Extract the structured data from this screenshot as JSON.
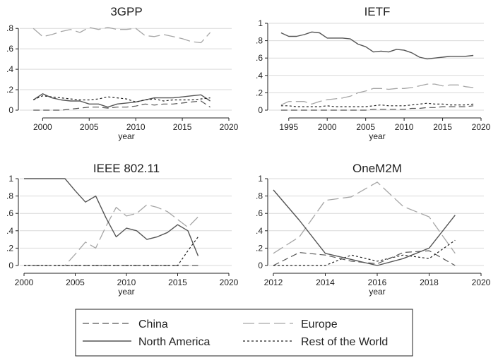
{
  "chart_data": [
    {
      "type": "line",
      "title": "3GPP",
      "xlabel": "year",
      "ylabel": "",
      "xlim": [
        1998,
        2020
      ],
      "ylim": [
        0,
        0.85
      ],
      "xticks": [
        2000,
        2005,
        2010,
        2015,
        2020
      ],
      "yticks": [
        0,
        0.2,
        0.4,
        0.6,
        0.8
      ],
      "ytick_labels": [
        "0",
        ".2",
        ".4",
        ".6",
        ".8"
      ],
      "grid": true,
      "series": [
        {
          "name": "China",
          "x": [
            1999,
            2000,
            2001,
            2002,
            2003,
            2004,
            2005,
            2006,
            2007,
            2008,
            2009,
            2010,
            2011,
            2012,
            2013,
            2014,
            2015,
            2016,
            2017,
            2018
          ],
          "values": [
            0.0,
            0.0,
            0.0,
            0.0,
            0.01,
            0.02,
            0.03,
            0.03,
            0.02,
            0.03,
            0.03,
            0.04,
            0.06,
            0.05,
            0.06,
            0.06,
            0.07,
            0.08,
            0.09,
            0.03
          ]
        },
        {
          "name": "Europe",
          "x": [
            1999,
            2000,
            2001,
            2002,
            2003,
            2004,
            2005,
            2006,
            2007,
            2008,
            2009,
            2010,
            2011,
            2012,
            2013,
            2014,
            2015,
            2016,
            2017,
            2018
          ],
          "values": [
            0.8,
            0.72,
            0.74,
            0.77,
            0.79,
            0.76,
            0.81,
            0.79,
            0.81,
            0.79,
            0.79,
            0.8,
            0.73,
            0.72,
            0.74,
            0.72,
            0.7,
            0.67,
            0.66,
            0.76
          ]
        },
        {
          "name": "North America",
          "x": [
            1999,
            2000,
            2001,
            2002,
            2003,
            2004,
            2005,
            2006,
            2007,
            2008,
            2009,
            2010,
            2011,
            2012,
            2013,
            2014,
            2015,
            2016,
            2017,
            2018
          ],
          "values": [
            0.1,
            0.16,
            0.12,
            0.1,
            0.09,
            0.09,
            0.06,
            0.06,
            0.03,
            0.06,
            0.07,
            0.08,
            0.1,
            0.12,
            0.12,
            0.12,
            0.13,
            0.14,
            0.15,
            0.09
          ]
        },
        {
          "name": "Rest of the World",
          "x": [
            1999,
            2000,
            2001,
            2002,
            2003,
            2004,
            2005,
            2006,
            2007,
            2008,
            2009,
            2010,
            2011,
            2012,
            2013,
            2014,
            2015,
            2016,
            2017,
            2018
          ],
          "values": [
            0.1,
            0.14,
            0.13,
            0.12,
            0.11,
            0.1,
            0.1,
            0.11,
            0.13,
            0.12,
            0.11,
            0.08,
            0.1,
            0.11,
            0.09,
            0.1,
            0.1,
            0.1,
            0.11,
            0.12
          ]
        }
      ]
    },
    {
      "type": "line",
      "title": "IETF",
      "xlabel": "year",
      "ylabel": "",
      "xlim": [
        1993,
        2020
      ],
      "ylim": [
        0,
        1.0
      ],
      "xticks": [
        1995,
        2000,
        2005,
        2010,
        2015,
        2020
      ],
      "yticks": [
        0,
        0.2,
        0.4,
        0.6,
        0.8,
        1
      ],
      "ytick_labels": [
        "0",
        ".2",
        ".4",
        ".6",
        ".8",
        "1"
      ],
      "grid": true,
      "series": [
        {
          "name": "China",
          "x": [
            1994,
            1995,
            1996,
            1997,
            1998,
            1999,
            2000,
            2001,
            2002,
            2003,
            2004,
            2005,
            2006,
            2007,
            2008,
            2009,
            2010,
            2011,
            2012,
            2013,
            2014,
            2015,
            2016,
            2017,
            2018,
            2019
          ],
          "values": [
            0.0,
            0.0,
            0.0,
            0.0,
            0.0,
            0.0,
            0.0,
            0.0,
            0.0,
            0.0,
            0.0,
            0.0,
            0.01,
            0.01,
            0.01,
            0.01,
            0.01,
            0.02,
            0.02,
            0.03,
            0.03,
            0.04,
            0.04,
            0.04,
            0.04,
            0.05
          ]
        },
        {
          "name": "Europe",
          "x": [
            1994,
            1995,
            1996,
            1997,
            1998,
            1999,
            2000,
            2001,
            2002,
            2003,
            2004,
            2005,
            2006,
            2007,
            2008,
            2009,
            2010,
            2011,
            2012,
            2013,
            2014,
            2015,
            2016,
            2017,
            2018,
            2019
          ],
          "values": [
            0.06,
            0.1,
            0.1,
            0.1,
            0.07,
            0.1,
            0.12,
            0.13,
            0.14,
            0.16,
            0.2,
            0.22,
            0.25,
            0.25,
            0.24,
            0.25,
            0.25,
            0.26,
            0.28,
            0.3,
            0.3,
            0.28,
            0.29,
            0.29,
            0.27,
            0.26
          ]
        },
        {
          "name": "North America",
          "x": [
            1994,
            1995,
            1996,
            1997,
            1998,
            1999,
            2000,
            2001,
            2002,
            2003,
            2004,
            2005,
            2006,
            2007,
            2008,
            2009,
            2010,
            2011,
            2012,
            2013,
            2014,
            2015,
            2016,
            2017,
            2018,
            2019
          ],
          "values": [
            0.89,
            0.85,
            0.85,
            0.87,
            0.9,
            0.89,
            0.83,
            0.83,
            0.83,
            0.82,
            0.76,
            0.73,
            0.67,
            0.68,
            0.67,
            0.7,
            0.69,
            0.66,
            0.61,
            0.59,
            0.6,
            0.61,
            0.62,
            0.62,
            0.62,
            0.63
          ]
        },
        {
          "name": "Rest of the World",
          "x": [
            1994,
            1995,
            1996,
            1997,
            1998,
            1999,
            2000,
            2001,
            2002,
            2003,
            2004,
            2005,
            2006,
            2007,
            2008,
            2009,
            2010,
            2011,
            2012,
            2013,
            2014,
            2015,
            2016,
            2017,
            2018,
            2019
          ],
          "values": [
            0.05,
            0.05,
            0.04,
            0.04,
            0.04,
            0.04,
            0.05,
            0.04,
            0.04,
            0.04,
            0.04,
            0.04,
            0.05,
            0.06,
            0.05,
            0.05,
            0.05,
            0.06,
            0.07,
            0.08,
            0.07,
            0.07,
            0.06,
            0.06,
            0.06,
            0.07
          ]
        }
      ]
    },
    {
      "type": "line",
      "title": "IEEE 802.11",
      "xlabel": "year",
      "ylabel": "",
      "xlim": [
        2000,
        2020
      ],
      "ylim": [
        0,
        1.0
      ],
      "xticks": [
        2000,
        2005,
        2010,
        2015,
        2020
      ],
      "yticks": [
        0,
        0.2,
        0.4,
        0.6,
        0.8,
        1
      ],
      "ytick_labels": [
        "0",
        ".2",
        ".4",
        ".6",
        ".8",
        "1"
      ],
      "grid": true,
      "series": [
        {
          "name": "China",
          "x": [
            2000,
            2001,
            2002,
            2003,
            2004,
            2005,
            2006,
            2007,
            2008,
            2009,
            2010,
            2011,
            2012,
            2013,
            2014,
            2015,
            2016,
            2017
          ],
          "values": [
            0,
            0,
            0,
            0,
            0,
            0,
            0,
            0,
            0,
            0,
            0,
            0,
            0,
            0,
            0,
            0,
            0,
            0
          ]
        },
        {
          "name": "Europe",
          "x": [
            2000,
            2001,
            2002,
            2003,
            2004,
            2005,
            2006,
            2007,
            2008,
            2009,
            2010,
            2011,
            2012,
            2013,
            2014,
            2015,
            2016,
            2017
          ],
          "values": [
            0,
            0,
            0,
            0,
            0,
            0.13,
            0.27,
            0.2,
            0.45,
            0.67,
            0.57,
            0.6,
            0.7,
            0.67,
            0.62,
            0.53,
            0.44,
            0.56
          ]
        },
        {
          "name": "North America",
          "x": [
            2000,
            2001,
            2002,
            2003,
            2004,
            2005,
            2006,
            2007,
            2008,
            2009,
            2010,
            2011,
            2012,
            2013,
            2014,
            2015,
            2016,
            2017
          ],
          "values": [
            1.0,
            1.0,
            1.0,
            1.0,
            1.0,
            0.86,
            0.73,
            0.8,
            0.55,
            0.33,
            0.43,
            0.4,
            0.3,
            0.33,
            0.38,
            0.47,
            0.4,
            0.11
          ]
        },
        {
          "name": "Rest of the World",
          "x": [
            2000,
            2001,
            2002,
            2003,
            2004,
            2005,
            2006,
            2007,
            2008,
            2009,
            2010,
            2011,
            2012,
            2013,
            2014,
            2015,
            2016,
            2017
          ],
          "values": [
            0,
            0,
            0,
            0,
            0,
            0,
            0,
            0,
            0,
            0,
            0,
            0,
            0,
            0,
            0,
            0,
            0.17,
            0.33
          ]
        }
      ]
    },
    {
      "type": "line",
      "title": "OneM2M",
      "xlabel": "year",
      "ylabel": "",
      "xlim": [
        2012,
        2020
      ],
      "ylim": [
        0,
        1.0
      ],
      "xticks": [
        2012,
        2014,
        2016,
        2018,
        2020
      ],
      "yticks": [
        0,
        0.2,
        0.4,
        0.6,
        0.8,
        1
      ],
      "ytick_labels": [
        "0",
        ".2",
        ".4",
        ".6",
        ".8",
        "1"
      ],
      "grid": true,
      "series": [
        {
          "name": "China",
          "x": [
            2012,
            2013,
            2014,
            2015,
            2016,
            2017,
            2018,
            2019
          ],
          "values": [
            0.0,
            0.15,
            0.12,
            0.05,
            0.02,
            0.15,
            0.17,
            0.0
          ]
        },
        {
          "name": "Europe",
          "x": [
            2012,
            2013,
            2014,
            2015,
            2016,
            2017,
            2018,
            2019
          ],
          "values": [
            0.14,
            0.33,
            0.75,
            0.79,
            0.96,
            0.68,
            0.56,
            0.14
          ]
        },
        {
          "name": "North America",
          "x": [
            2012,
            2013,
            2014,
            2015,
            2016,
            2017,
            2018,
            2019
          ],
          "values": [
            0.87,
            0.52,
            0.14,
            0.07,
            0.0,
            0.08,
            0.2,
            0.58
          ]
        },
        {
          "name": "Rest of the World",
          "x": [
            2012,
            2013,
            2014,
            2015,
            2016,
            2017,
            2018,
            2019
          ],
          "values": [
            0.0,
            0.0,
            0.0,
            0.12,
            0.05,
            0.12,
            0.08,
            0.29
          ]
        }
      ]
    }
  ],
  "legend": {
    "position": "bottom",
    "items": [
      {
        "label": "China",
        "style": "china"
      },
      {
        "label": "Europe",
        "style": "europe"
      },
      {
        "label": "North America",
        "style": "north_america"
      },
      {
        "label": "Rest of the World",
        "style": "rest_of_world"
      }
    ]
  },
  "colors": {
    "background": "#ffffff",
    "grid": "#d9d9d9",
    "axis": "#222222",
    "china": "#555555",
    "europe": "#a6a6a6",
    "north_america": "#555555",
    "rest_of_world": "#222222"
  }
}
